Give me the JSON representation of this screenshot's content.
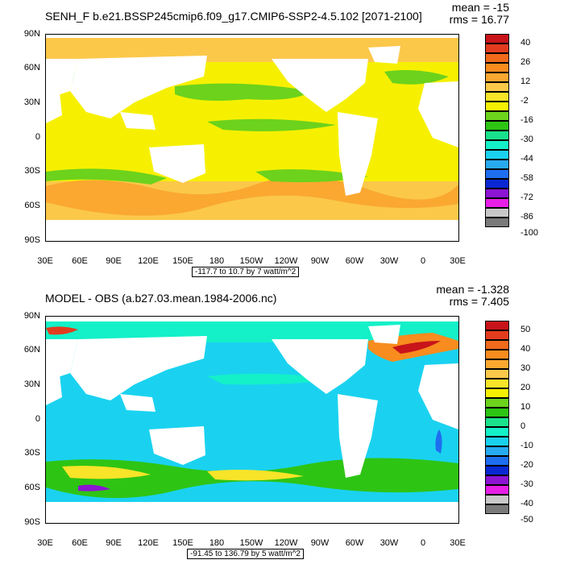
{
  "panels": [
    {
      "title": "SENH_F b.e21.BSSP245cmip6.f09_g17.CMIP6-SSP2-4.5.102 [2071-2100]",
      "mean_text": "mean = -15",
      "rms_text": "rms = 16.77",
      "contour_info": "-117.7 to 10.7 by 7 watt/m^2",
      "lat_labels": [
        "90N",
        "60N",
        "30N",
        "0",
        "30S",
        "60S",
        "90S"
      ],
      "lon_labels": [
        "30E",
        "60E",
        "90E",
        "120E",
        "150E",
        "180",
        "150W",
        "120W",
        "90W",
        "60W",
        "30W",
        "0",
        "30E"
      ],
      "colorbar_labels": [
        "40",
        "26",
        "12",
        "-2",
        "-16",
        "-30",
        "-44",
        "-58",
        "-72",
        "-86",
        "-100"
      ],
      "colorbar_colors": [
        "#c8141a",
        "#e23c1e",
        "#f06a1c",
        "#f88c1e",
        "#faa830",
        "#fbc84a",
        "#f8e428",
        "#f6f000",
        "#6cd21c",
        "#2ec414",
        "#1ae28c",
        "#14f0c8",
        "#1ad2f0",
        "#28aaf0",
        "#1e6ef0",
        "#0a28d2",
        "#8c14d2",
        "#e61ee6",
        "#c8c8c8",
        "#7a7a7a"
      ]
    },
    {
      "title": "MODEL - OBS (a.b27.03.mean.1984-2006.nc)",
      "mean_text": "mean = -1.328",
      "rms_text": "rms = 7.405",
      "contour_info": "-91.45 to 136.79 by 5 watt/m^2",
      "lat_labels": [
        "90N",
        "60N",
        "30N",
        "0",
        "30S",
        "60S",
        "90S"
      ],
      "lon_labels": [
        "30E",
        "60E",
        "90E",
        "120E",
        "150E",
        "180",
        "150W",
        "120W",
        "90W",
        "60W",
        "30W",
        "0",
        "30E"
      ],
      "colorbar_labels": [
        "50",
        "40",
        "30",
        "20",
        "10",
        "0",
        "-10",
        "-20",
        "-30",
        "-40",
        "-50"
      ],
      "colorbar_colors": [
        "#c8141a",
        "#e23c1e",
        "#f06a1c",
        "#f88c1e",
        "#faa830",
        "#fbc84a",
        "#f8e428",
        "#f6f000",
        "#6cd21c",
        "#2ec414",
        "#1ae28c",
        "#14f0c8",
        "#1ad2f0",
        "#28aaf0",
        "#1e6ef0",
        "#0a28d2",
        "#8c14d2",
        "#e61ee6",
        "#c8c8c8",
        "#7a7a7a"
      ]
    }
  ]
}
